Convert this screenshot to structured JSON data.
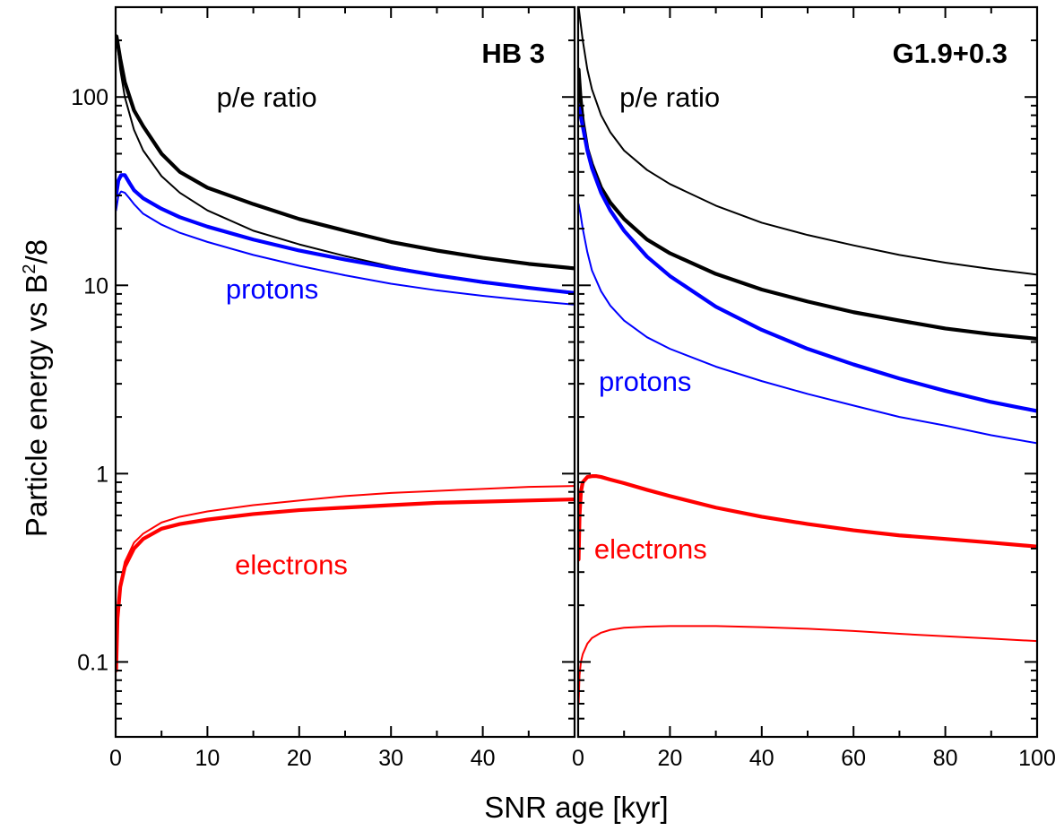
{
  "figure": {
    "xlabel": "SNR age [kyr]",
    "ylabel_main": "Particle energy vs B",
    "ylabel_sup": "2",
    "ylabel_tail": "/8"
  },
  "colors": {
    "black": "#000000",
    "blue": "#0000ff",
    "red": "#ff0000"
  },
  "chart_data": [
    {
      "type": "line",
      "title": "HB 3",
      "xlabel": "SNR age [kyr]",
      "ylabel": "Particle energy vs B²/8",
      "xlim": [
        0,
        50
      ],
      "ylim": [
        0.04,
        300
      ],
      "yscale": "log",
      "xticks": [
        0,
        10,
        20,
        30,
        40
      ],
      "xtick_labels": [
        "0",
        "10",
        "20",
        "30",
        "40"
      ],
      "yticks": [
        0.1,
        1,
        10,
        100
      ],
      "ytick_labels": [
        "0.1",
        "1",
        "10",
        "100"
      ],
      "annotations": [
        {
          "text": "p/e ratio",
          "color": "#000000",
          "x": 11,
          "y": 100
        },
        {
          "text": "protons",
          "color": "#0000ff",
          "x": 12,
          "y": 9.6
        },
        {
          "text": "electrons",
          "color": "#ff0000",
          "x": 13,
          "y": 0.33
        }
      ],
      "series": [
        {
          "color": "#000000",
          "width": "thick",
          "x": [
            0.1,
            0.5,
            1,
            2,
            3,
            5,
            7,
            10,
            15,
            20,
            25,
            30,
            35,
            40,
            45,
            50
          ],
          "y": [
            210,
            160,
            120,
            85,
            70,
            50,
            40,
            33,
            27,
            22.5,
            19.5,
            17,
            15.3,
            14,
            13,
            12.3
          ]
        },
        {
          "color": "#000000",
          "width": "thin",
          "x": [
            0.1,
            0.5,
            1,
            2,
            3,
            5,
            7,
            10,
            15,
            20,
            25,
            30,
            35,
            40,
            45,
            50
          ],
          "y": [
            210,
            140,
            100,
            67,
            52,
            38,
            31,
            25,
            19.5,
            16.5,
            14.3,
            12.6,
            11.3,
            10.3,
            9.7,
            9.2
          ]
        },
        {
          "color": "#0000ff",
          "width": "thick",
          "x": [
            0.05,
            0.3,
            0.6,
            1,
            1.5,
            2,
            3,
            5,
            7,
            10,
            15,
            20,
            25,
            30,
            35,
            40,
            45,
            50
          ],
          "y": [
            30,
            36,
            38.5,
            38.5,
            35,
            32,
            29,
            25.5,
            23,
            20.5,
            17.5,
            15.3,
            13.7,
            12.4,
            11.3,
            10.4,
            9.7,
            9.1
          ]
        },
        {
          "color": "#0000ff",
          "width": "thin",
          "x": [
            0.05,
            0.3,
            0.6,
            1,
            1.5,
            2,
            3,
            5,
            7,
            10,
            15,
            20,
            25,
            30,
            35,
            40,
            45,
            50
          ],
          "y": [
            25,
            30,
            31.5,
            31,
            29,
            27,
            24,
            21,
            19,
            17,
            14.5,
            12.7,
            11.3,
            10.2,
            9.4,
            8.8,
            8.3,
            7.9
          ]
        },
        {
          "color": "#ff0000",
          "width": "thick",
          "x": [
            0.05,
            0.2,
            0.5,
            1,
            2,
            3,
            5,
            7,
            10,
            15,
            20,
            25,
            30,
            35,
            40,
            45,
            50
          ],
          "y": [
            0.09,
            0.17,
            0.25,
            0.32,
            0.4,
            0.45,
            0.51,
            0.54,
            0.57,
            0.61,
            0.64,
            0.66,
            0.68,
            0.7,
            0.71,
            0.72,
            0.73
          ]
        },
        {
          "color": "#ff0000",
          "width": "thin",
          "x": [
            0.05,
            0.2,
            0.5,
            1,
            2,
            3,
            5,
            7,
            10,
            15,
            20,
            25,
            30,
            35,
            40,
            45,
            50
          ],
          "y": [
            0.09,
            0.17,
            0.26,
            0.34,
            0.43,
            0.48,
            0.55,
            0.59,
            0.63,
            0.68,
            0.72,
            0.76,
            0.79,
            0.81,
            0.83,
            0.85,
            0.86
          ]
        }
      ]
    },
    {
      "type": "line",
      "title": "G1.9+0.3",
      "xlabel": "SNR age [kyr]",
      "ylabel": "",
      "xlim": [
        0,
        100
      ],
      "ylim": [
        0.04,
        300
      ],
      "yscale": "log",
      "xticks": [
        0,
        20,
        40,
        60,
        80,
        100
      ],
      "xtick_labels": [
        "0",
        "20",
        "40",
        "60",
        "80",
        "100"
      ],
      "yticks": [
        0.1,
        1,
        10,
        100
      ],
      "ytick_labels": [],
      "annotations": [
        {
          "text": "p/e ratio",
          "color": "#000000",
          "x": 9,
          "y": 100
        },
        {
          "text": "protons",
          "color": "#0000ff",
          "x": 4.5,
          "y": 3.1
        },
        {
          "text": "electrons",
          "color": "#ff0000",
          "x": 3.5,
          "y": 0.4
        }
      ],
      "series": [
        {
          "color": "#000000",
          "width": "thin",
          "x": [
            0.1,
            0.5,
            1,
            2,
            3,
            5,
            7,
            10,
            15,
            20,
            30,
            40,
            50,
            60,
            70,
            80,
            90,
            100
          ],
          "y": [
            300,
            250,
            200,
            140,
            110,
            80,
            65,
            52,
            41,
            34.5,
            26.5,
            21.5,
            18.5,
            16.3,
            14.5,
            13.2,
            12.2,
            11.4
          ]
        },
        {
          "color": "#000000",
          "width": "thick",
          "x": [
            0.1,
            0.5,
            1,
            2,
            3,
            5,
            7,
            10,
            15,
            20,
            30,
            40,
            50,
            60,
            70,
            80,
            90,
            100
          ],
          "y": [
            140,
            100,
            75,
            53,
            44,
            33,
            27.5,
            22.5,
            17.5,
            14.8,
            11.5,
            9.5,
            8.2,
            7.2,
            6.5,
            5.9,
            5.5,
            5.2
          ]
        },
        {
          "color": "#0000ff",
          "width": "thick",
          "x": [
            0.1,
            0.5,
            1,
            2,
            3,
            5,
            7,
            10,
            15,
            20,
            30,
            40,
            50,
            60,
            70,
            80,
            90,
            100
          ],
          "y": [
            90,
            80,
            70,
            52,
            42,
            31,
            25,
            19.5,
            14.2,
            11.2,
            7.7,
            5.8,
            4.6,
            3.8,
            3.2,
            2.75,
            2.4,
            2.15
          ]
        },
        {
          "color": "#0000ff",
          "width": "thin",
          "x": [
            0.1,
            0.5,
            1,
            2,
            3,
            5,
            7,
            10,
            15,
            20,
            30,
            40,
            50,
            60,
            70,
            80,
            90,
            100
          ],
          "y": [
            27,
            24,
            20,
            15,
            12,
            9.3,
            7.8,
            6.5,
            5.3,
            4.6,
            3.7,
            3.1,
            2.65,
            2.3,
            2.0,
            1.8,
            1.6,
            1.45
          ]
        },
        {
          "color": "#ff0000",
          "width": "thick",
          "x": [
            0.1,
            0.3,
            0.6,
            1,
            2,
            3,
            4,
            5,
            7,
            10,
            15,
            20,
            30,
            40,
            50,
            60,
            70,
            80,
            90,
            100
          ],
          "y": [
            0.35,
            0.6,
            0.8,
            0.9,
            0.96,
            0.97,
            0.97,
            0.96,
            0.93,
            0.89,
            0.82,
            0.76,
            0.66,
            0.59,
            0.54,
            0.5,
            0.47,
            0.45,
            0.43,
            0.41
          ]
        },
        {
          "color": "#ff0000",
          "width": "thin",
          "x": [
            0.1,
            0.3,
            0.6,
            1,
            2,
            3,
            5,
            7,
            10,
            15,
            20,
            30,
            40,
            50,
            60,
            70,
            80,
            90,
            100
          ],
          "y": [
            0.06,
            0.085,
            0.1,
            0.11,
            0.125,
            0.134,
            0.143,
            0.148,
            0.152,
            0.154,
            0.155,
            0.155,
            0.153,
            0.15,
            0.146,
            0.141,
            0.137,
            0.133,
            0.129
          ]
        }
      ]
    }
  ]
}
